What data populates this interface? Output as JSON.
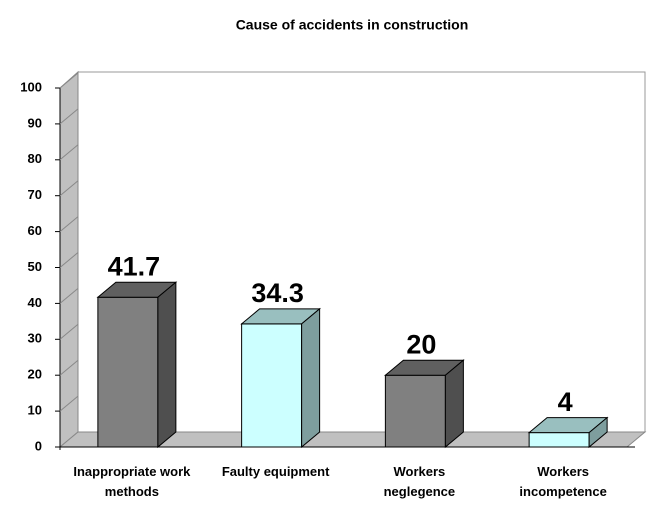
{
  "chart_data": {
    "type": "bar3d",
    "title": "Cause of accidents in construction",
    "categories": [
      "Inappropriate work methods",
      "Faulty equipment",
      "Workers neglegence",
      "Workers incompetence"
    ],
    "values": [
      41.7,
      34.3,
      20,
      4
    ],
    "colors": [
      "#808080",
      "#ccffff",
      "#808080",
      "#ccffff"
    ],
    "ylim": [
      0,
      100
    ],
    "yticks": [
      0,
      10,
      20,
      30,
      40,
      50,
      60,
      70,
      80,
      90,
      100
    ]
  }
}
